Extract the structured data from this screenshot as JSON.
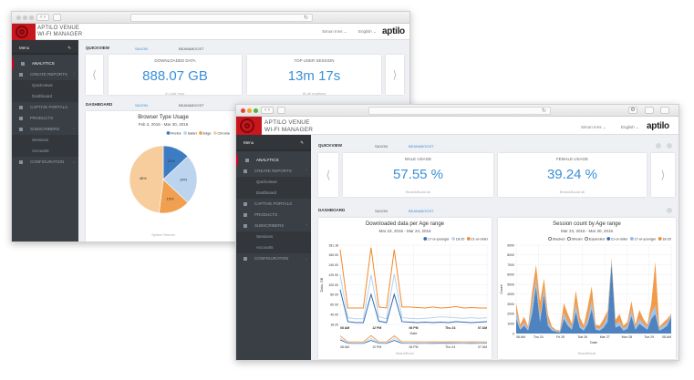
{
  "colors": {
    "accent": "#3a8fd8",
    "brand_red": "#c8161d",
    "sidebar": "#3a3f45",
    "firefox": "#2f6db5",
    "safari": "#b9d3ee",
    "edge": "#f08a2c",
    "chrome": "#f8c998"
  },
  "header": {
    "logo_line1": "APTILO VENUE",
    "logo_line2": "WI-FI MANAGER",
    "user": "Simon Inns ⌄",
    "language": "English ⌄",
    "brand": "aptilo"
  },
  "sidebar": {
    "menu": "Menu",
    "items": [
      {
        "label": "ANALYTICS"
      },
      {
        "label": "CREATE REPORTS"
      },
      {
        "label": "Quickviews"
      },
      {
        "label": "Dashboard"
      },
      {
        "label": "CAPTIVE PORTALS"
      },
      {
        "label": "PRODUCTS"
      },
      {
        "label": "SUBSCRIBERS"
      },
      {
        "label": "Sessions"
      },
      {
        "label": "Accounts"
      },
      {
        "label": "CONFIGURATION"
      }
    ]
  },
  "tabs": {
    "quickview": "QUICKVIEW",
    "dashboard": "DASHBOARD",
    "saxon": "SAXON",
    "beanboost": "BEAN&BOOST"
  },
  "back": {
    "cards": [
      {
        "label": "DOWNLOADED DATA",
        "value": "888.07 GB",
        "foot": "in Last hour"
      },
      {
        "label": "TOP USER SESSION",
        "value": "13m 17s",
        "foot": "At all locations"
      }
    ],
    "pie_footer": "System Telecom"
  },
  "front": {
    "cards": [
      {
        "label": "MALE USAGE",
        "value": "57.55 %",
        "foot": "Bean&Boost all"
      },
      {
        "label": "FEMALE USAGE",
        "value": "39.24 %",
        "foot": "Bean&Boost all"
      }
    ],
    "chart_footer": "Bean&Boost"
  },
  "chart_data": [
    {
      "type": "pie",
      "title": "Browser Type Usage",
      "subtitle": "Feb 3, 2016 - Mar 30, 2016",
      "legend": "top-right",
      "slices": [
        {
          "name": "Firefox",
          "value": 13,
          "label": "13%",
          "color": "#3d7cc2"
        },
        {
          "name": "Safari",
          "value": 24,
          "label": "24%",
          "color": "#bcd4ee"
        },
        {
          "name": "Edge",
          "value": 15,
          "label": "15%",
          "color": "#f0a050"
        },
        {
          "name": "Chrome",
          "value": 48,
          "label": "48%",
          "color": "#f8cd9e"
        }
      ]
    },
    {
      "type": "line",
      "title": "Downloaded data per Age range",
      "subtitle": "Mar 23, 2016 - Mar 24, 2016",
      "xlabel": "Date",
      "ylabel": "Data, GB",
      "legend": "top-right",
      "grid": true,
      "ylim": [
        18.29,
        181.18
      ],
      "yticks": [
        "181.18",
        "160.00",
        "140.00",
        "120.00",
        "100.00",
        "80.00",
        "60.00",
        "40.00",
        "18.29"
      ],
      "xticks": [
        "08 AM",
        "12 PM",
        "06 PM",
        "Thu 24",
        "07 AM"
      ],
      "series": [
        {
          "name": "17-or-younger",
          "color": "#2f6db5",
          "values": [
            90,
            24,
            22,
            22,
            80,
            25,
            22,
            80,
            24,
            23,
            22,
            23,
            22,
            23,
            22,
            24,
            23,
            22,
            23,
            24
          ]
        },
        {
          "name": "18-20",
          "color": "#b9d3ee",
          "values": [
            120,
            32,
            30,
            30,
            120,
            34,
            30,
            122,
            32,
            31,
            30,
            31,
            32,
            34,
            33,
            32,
            31,
            32,
            31,
            32
          ]
        },
        {
          "name": "21-or-older",
          "color": "#f08a2c",
          "values": [
            172,
            52,
            52,
            52,
            176,
            54,
            52,
            172,
            54,
            54,
            53,
            52,
            54,
            52,
            53,
            55,
            52,
            53,
            52,
            52
          ]
        }
      ]
    },
    {
      "type": "area",
      "title": "Session count by Age range",
      "subtitle": "Mar 23, 2016 - Mar 30, 2016",
      "xlabel": "Date",
      "ylabel": "Count",
      "legend": "top",
      "grid": true,
      "stacked": true,
      "modes": [
        "Stacked",
        "Stream",
        "Expanded"
      ],
      "ylim": [
        0,
        9000
      ],
      "yticks": [
        "9000",
        "8000",
        "7000",
        "6000",
        "5000",
        "4000",
        "3000",
        "2000",
        "1000",
        "0"
      ],
      "xticks": [
        "08 AM",
        "Thu 24",
        "Fri 25",
        "Sat 26",
        "Mar 27",
        "Mon 28",
        "Tue 29",
        "08 AM"
      ],
      "series": [
        {
          "name": "21-or-older",
          "color": "#2f6db5",
          "values": [
            1500,
            400,
            800,
            300,
            2000,
            4800,
            1200,
            4000,
            800,
            300,
            200,
            100,
            1500,
            800,
            400,
            2200,
            600,
            300,
            1000,
            2500,
            400,
            300,
            600,
            1200,
            7200,
            600,
            800,
            300,
            500,
            1800,
            400,
            1000,
            700,
            400,
            1500,
            2000,
            300,
            500,
            800,
            1700
          ]
        },
        {
          "name": "17-or-younger",
          "color": "#8fb8e6",
          "values": [
            800,
            200,
            300,
            200,
            1000,
            800,
            500,
            600,
            400,
            200,
            100,
            100,
            600,
            400,
            200,
            800,
            300,
            200,
            500,
            800,
            200,
            200,
            300,
            600,
            300,
            300,
            400,
            200,
            300,
            600,
            200,
            500,
            300,
            200,
            600,
            800,
            200,
            300,
            300,
            200
          ]
        },
        {
          "name": "18-20",
          "color": "#f08a2c",
          "values": [
            800,
            300,
            600,
            200,
            1200,
            1400,
            1500,
            1000,
            700,
            200,
            100,
            100,
            1000,
            800,
            400,
            1400,
            800,
            300,
            1200,
            1500,
            300,
            300,
            600,
            500,
            200,
            500,
            800,
            300,
            400,
            900,
            300,
            900,
            500,
            300,
            1000,
            4500,
            200,
            300,
            400,
            100
          ]
        }
      ]
    }
  ]
}
